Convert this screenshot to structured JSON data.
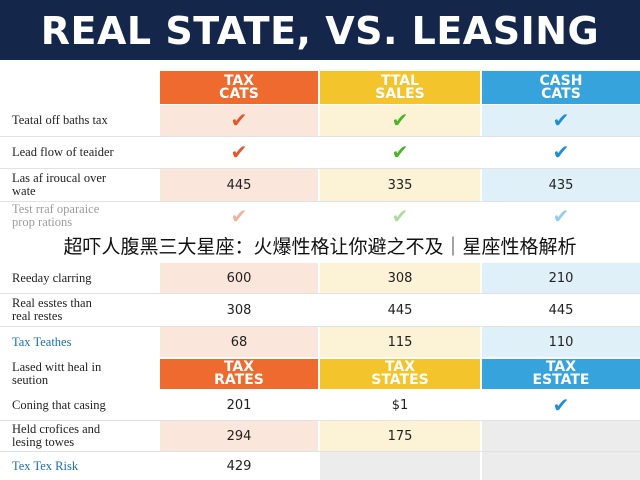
{
  "banner": {
    "title": "REAL STATE, VS. LEASING"
  },
  "header": {
    "columns": [
      {
        "label": "TAX\nCATS",
        "color": "#ee6a2e"
      },
      {
        "label": "TTAL\nSALES",
        "color": "#f3c42c"
      },
      {
        "label": "CASH\nCATS",
        "color": "#37a3dc"
      }
    ]
  },
  "rows": [
    {
      "label": "Teatal off baths tax",
      "c1": "check",
      "c2": "check",
      "c3": "check"
    },
    {
      "label": "Lead flow of teaider",
      "c1": "check",
      "c2": "check",
      "c3": "check"
    },
    {
      "label": "Las af iroucal over\nwate",
      "c1": "445",
      "c2": "335",
      "c3": "435"
    },
    {
      "label": "Test rraf oparaice\nprop rations",
      "c1": "check",
      "c2": "check",
      "c3": "check"
    },
    {
      "label": "Reeday clarring",
      "c1": "600",
      "c2": "308",
      "c3": "210"
    },
    {
      "label": "Real esstes than\nreal restes",
      "c1": "308",
      "c2": "445",
      "c3": "445"
    },
    {
      "label": "Tax Teathes",
      "c1": "68",
      "c2": "115",
      "c3": "110"
    }
  ],
  "subheader": {
    "label": "Lased witt heal in\nseution",
    "columns": [
      {
        "label": "TAX\nRATES"
      },
      {
        "label": "TAX\nSTATES"
      },
      {
        "label": "TAX\nESTATE"
      }
    ]
  },
  "rows2": [
    {
      "label": "Coning that casing",
      "c1": "201",
      "c2": "$1",
      "c3": "check"
    },
    {
      "label": "Held crofices and\nlesing towes",
      "c1": "294",
      "c2": "175",
      "c3": ""
    },
    {
      "label": "Tex Tex Risk",
      "c1": "429",
      "c2": "",
      "c3": ""
    }
  ],
  "overlay_caption": "超吓人腹黑三大星座：火爆性格让你避之不及｜星座性格解析",
  "colors": {
    "banner_bg": "#14274a",
    "accent_orange": "#ee6a2e",
    "accent_yellow": "#f3c42c",
    "accent_blue": "#37a3dc"
  },
  "icons": {
    "check": "check-icon"
  }
}
